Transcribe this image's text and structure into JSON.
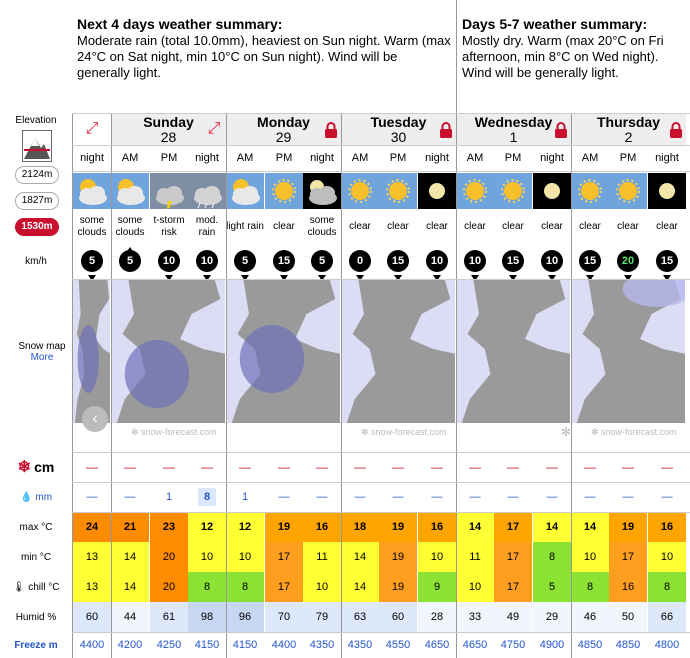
{
  "summary_left": {
    "title": "Next 4 days weather summary:",
    "text": "Moderate rain (total 10.0mm), heaviest on Sun night. Warm (max 24°C on Sat night, min 10°C on Sun night). Wind will be generally light."
  },
  "summary_right": {
    "title": "Days 5-7 weather summary:",
    "text": "Mostly dry. Warm (max 20°C on Fri afternoon, min 8°C on Wed night). Wind will be generally light."
  },
  "sidebar": {
    "elevation_label": "Elevation",
    "elevations": [
      "2124m",
      "1827m",
      "1530m"
    ],
    "active_elevation": "1530m",
    "wind_unit": "km/h",
    "snow_map_label": "Snow map",
    "more_link": "More",
    "snow_label": "cm",
    "rain_label": "mm",
    "max_label": "max °C",
    "min_label": "min °C",
    "chill_label": "chill °C",
    "humid_label": "Humid %",
    "freeze_label": "Freeze m"
  },
  "days": [
    {
      "name": "",
      "date": "",
      "locked": false
    },
    {
      "name": "Sunday",
      "date": "28",
      "locked": false
    },
    {
      "name": "Monday",
      "date": "29",
      "locked": true
    },
    {
      "name": "Tuesday",
      "date": "30",
      "locked": true
    },
    {
      "name": "Wednesday",
      "date": "1",
      "locked": true
    },
    {
      "name": "Thursday",
      "date": "2",
      "locked": true
    }
  ],
  "periods": [
    "night",
    "AM",
    "PM",
    "night",
    "AM",
    "PM",
    "night",
    "AM",
    "PM",
    "night",
    "AM",
    "PM",
    "night",
    "AM",
    "PM",
    "night"
  ],
  "weather_icons": [
    "sun-cloud",
    "sun-cloud",
    "storm",
    "rain-cloud",
    "sun-cloud",
    "sun",
    "moon-cloud",
    "sun",
    "sun",
    "moon",
    "sun",
    "sun",
    "moon",
    "sun",
    "sun",
    "moon"
  ],
  "weather_text": [
    "some clouds",
    "some clouds",
    "t-storm risk",
    "mod. rain",
    "light rain",
    "clear",
    "some clouds",
    "clear",
    "clear",
    "clear",
    "clear",
    "clear",
    "clear",
    "clear",
    "clear",
    "clear"
  ],
  "wind_speed": [
    "5",
    "5",
    "10",
    "10",
    "5",
    "15",
    "5",
    "0",
    "15",
    "10",
    "10",
    "15",
    "10",
    "15",
    "20",
    "15"
  ],
  "wind_dir": [
    "down",
    "up",
    "down",
    "down",
    "down",
    "down",
    "down",
    "down",
    "down",
    "down",
    "down",
    "down",
    "down",
    "down",
    "down",
    "down"
  ],
  "snow": [
    "—",
    "—",
    "—",
    "—",
    "—",
    "—",
    "—",
    "—",
    "—",
    "—",
    "—",
    "—",
    "—",
    "—",
    "—",
    "—"
  ],
  "rain": [
    "—",
    "—",
    "1",
    "8",
    "1",
    "—",
    "—",
    "—",
    "—",
    "—",
    "—",
    "—",
    "—",
    "—",
    "—",
    "—"
  ],
  "max_temp": [
    "24",
    "21",
    "23",
    "12",
    "12",
    "19",
    "16",
    "18",
    "19",
    "16",
    "14",
    "17",
    "14",
    "14",
    "19",
    "16"
  ],
  "min_temp": [
    "13",
    "14",
    "20",
    "10",
    "10",
    "17",
    "11",
    "14",
    "19",
    "10",
    "11",
    "17",
    "8",
    "10",
    "17",
    "10"
  ],
  "chill_temp": [
    "13",
    "14",
    "20",
    "8",
    "8",
    "17",
    "10",
    "14",
    "19",
    "9",
    "10",
    "17",
    "5",
    "8",
    "16",
    "8"
  ],
  "humidity": [
    "60",
    "44",
    "61",
    "98",
    "96",
    "70",
    "79",
    "63",
    "60",
    "28",
    "33",
    "49",
    "29",
    "46",
    "50",
    "66"
  ],
  "freezing_level": [
    "4400",
    "4200",
    "4250",
    "4150",
    "4150",
    "4400",
    "4350",
    "4350",
    "4550",
    "4650",
    "4650",
    "4750",
    "4900",
    "4850",
    "4850",
    "4800"
  ],
  "map_caption": "snow-forecast.com",
  "colors": {
    "orange": "#ff8c00",
    "yellow": "#ffff33",
    "lgreen": "#8be233",
    "lblue": "#dde8fa",
    "red": "#c8102e"
  }
}
